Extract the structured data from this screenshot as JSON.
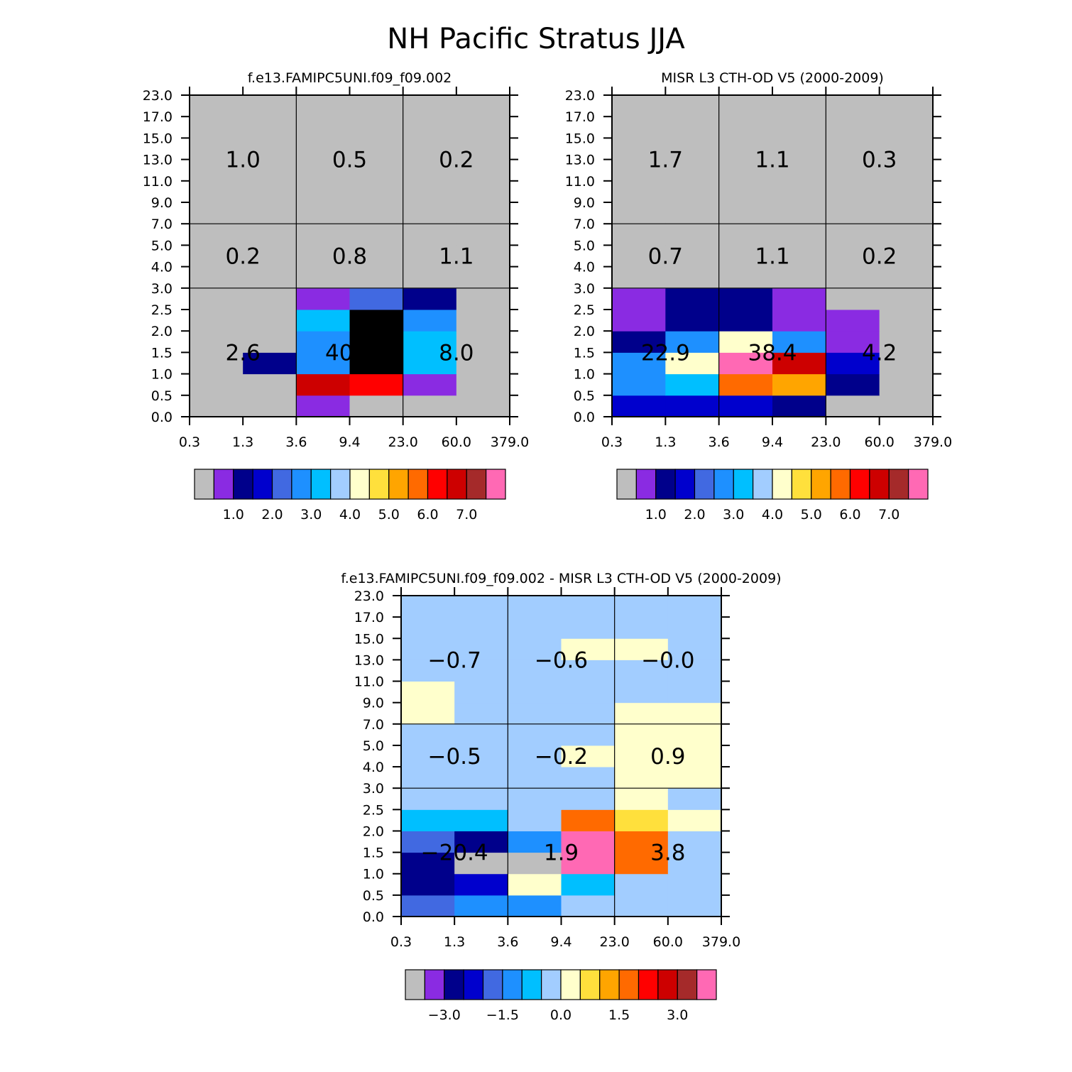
{
  "figure_title": "NH Pacific Stratus JJA",
  "chart_data": [
    {
      "type": "heatmap",
      "title": "f.e13.FAMIPC5UNI.f09_f09.002",
      "x_ticks": [
        "0.3",
        "1.3",
        "3.6",
        "9.4",
        "23.0",
        "60.0",
        "379.0"
      ],
      "y_ticks": [
        "0.0",
        "0.5",
        "1.0",
        "1.5",
        "2.0",
        "2.5",
        "3.0",
        "4.0",
        "5.0",
        "7.0",
        "9.0",
        "11.0",
        "13.0",
        "15.0",
        "17.0",
        "23.0"
      ],
      "cells": [
        [
          0,
          0,
          1,
          0,
          0,
          0
        ],
        [
          0,
          0,
          13,
          12,
          1,
          0
        ],
        [
          0,
          2,
          5,
          16,
          6,
          0
        ],
        [
          0,
          0,
          5,
          16,
          6,
          0
        ],
        [
          0,
          0,
          6,
          16,
          5,
          0
        ],
        [
          0,
          0,
          1,
          4,
          2,
          0
        ],
        [
          0,
          0,
          0,
          0,
          0,
          0
        ],
        [
          0,
          0,
          0,
          0,
          0,
          0
        ],
        [
          0,
          0,
          0,
          0,
          0,
          0
        ],
        [
          0,
          0,
          0,
          0,
          0,
          0
        ],
        [
          0,
          0,
          0,
          0,
          0,
          0
        ],
        [
          0,
          0,
          0,
          0,
          0,
          0
        ],
        [
          0,
          0,
          0,
          0,
          0,
          0
        ],
        [
          0,
          0,
          0,
          0,
          0,
          0
        ],
        [
          0,
          0,
          0,
          0,
          0,
          0
        ]
      ],
      "box_labels": [
        [
          "2.6",
          "40.3",
          "8.0"
        ],
        [
          "0.2",
          "0.8",
          "1.1"
        ],
        [
          "1.0",
          "0.5",
          "0.2"
        ]
      ],
      "colorbar": {
        "colors": [
          "#bebebe",
          "#8a2be2",
          "#00008b",
          "#0000cd",
          "#4169e1",
          "#1e90ff",
          "#00bfff",
          "#a2cdff",
          "#ffffcc",
          "#ffe03c",
          "#ffa500",
          "#ff6a00",
          "#ff0000",
          "#cd0000",
          "#a52a2a",
          "#ff69b4"
        ],
        "labels": [
          "1.0",
          "2.0",
          "3.0",
          "4.0",
          "5.0",
          "6.0",
          "7.0"
        ]
      }
    },
    {
      "type": "heatmap",
      "title": "MISR L3 CTH-OD V5 (2000-2009)",
      "x_ticks": [
        "0.3",
        "1.3",
        "3.6",
        "9.4",
        "23.0",
        "60.0",
        "379.0"
      ],
      "y_ticks": [
        "0.0",
        "0.5",
        "1.0",
        "1.5",
        "2.0",
        "2.5",
        "3.0",
        "4.0",
        "5.0",
        "7.0",
        "9.0",
        "11.0",
        "13.0",
        "15.0",
        "17.0",
        "23.0"
      ],
      "cells": [
        [
          3,
          3,
          3,
          2,
          0,
          0
        ],
        [
          5,
          6,
          11,
          10,
          2,
          0
        ],
        [
          5,
          8,
          15,
          13,
          3,
          0
        ],
        [
          2,
          5,
          8,
          5,
          1,
          0
        ],
        [
          1,
          2,
          2,
          1,
          1,
          0
        ],
        [
          1,
          2,
          2,
          1,
          0,
          0
        ],
        [
          0,
          0,
          0,
          0,
          0,
          0
        ],
        [
          0,
          0,
          0,
          0,
          0,
          0
        ],
        [
          0,
          0,
          0,
          0,
          0,
          0
        ],
        [
          0,
          0,
          0,
          0,
          0,
          0
        ],
        [
          0,
          0,
          0,
          0,
          0,
          0
        ],
        [
          0,
          0,
          0,
          0,
          0,
          0
        ],
        [
          0,
          0,
          0,
          0,
          0,
          0
        ],
        [
          0,
          0,
          0,
          0,
          0,
          0
        ],
        [
          0,
          0,
          0,
          0,
          0,
          0
        ]
      ],
      "box_labels": [
        [
          "22.9",
          "38.4",
          "4.2"
        ],
        [
          "0.7",
          "1.1",
          "0.2"
        ],
        [
          "1.7",
          "1.1",
          "0.3"
        ]
      ],
      "colorbar": {
        "colors": [
          "#bebebe",
          "#8a2be2",
          "#00008b",
          "#0000cd",
          "#4169e1",
          "#1e90ff",
          "#00bfff",
          "#a2cdff",
          "#ffffcc",
          "#ffe03c",
          "#ffa500",
          "#ff6a00",
          "#ff0000",
          "#cd0000",
          "#a52a2a",
          "#ff69b4"
        ],
        "labels": [
          "1.0",
          "2.0",
          "3.0",
          "4.0",
          "5.0",
          "6.0",
          "7.0"
        ]
      }
    },
    {
      "type": "heatmap",
      "title": "f.e13.FAMIPC5UNI.f09_f09.002 - MISR L3 CTH-OD V5 (2000-2009)",
      "x_ticks": [
        "0.3",
        "1.3",
        "3.6",
        "9.4",
        "23.0",
        "60.0",
        "379.0"
      ],
      "y_ticks": [
        "0.0",
        "0.5",
        "1.0",
        "1.5",
        "2.0",
        "2.5",
        "3.0",
        "4.0",
        "5.0",
        "7.0",
        "9.0",
        "11.0",
        "13.0",
        "15.0",
        "17.0",
        "23.0"
      ],
      "cells": [
        [
          4,
          5,
          5,
          7,
          7,
          7
        ],
        [
          2,
          3,
          8,
          6,
          7,
          7
        ],
        [
          2,
          0,
          0,
          15,
          11,
          7
        ],
        [
          4,
          2,
          5,
          15,
          11,
          7
        ],
        [
          6,
          6,
          7,
          11,
          9,
          8
        ],
        [
          7,
          7,
          7,
          7,
          8,
          7
        ],
        [
          7,
          7,
          7,
          7,
          8,
          8
        ],
        [
          7,
          7,
          7,
          8,
          8,
          8
        ],
        [
          7,
          7,
          7,
          7,
          8,
          8
        ],
        [
          8,
          7,
          7,
          7,
          8,
          8
        ],
        [
          8,
          7,
          7,
          7,
          7,
          7
        ],
        [
          7,
          7,
          7,
          7,
          7,
          7
        ],
        [
          7,
          7,
          7,
          8,
          8,
          7
        ],
        [
          7,
          7,
          7,
          7,
          7,
          7
        ],
        [
          7,
          7,
          7,
          7,
          7,
          7
        ]
      ],
      "box_labels": [
        [
          "−20.4",
          "1.9",
          "3.8"
        ],
        [
          "−0.5",
          "−0.2",
          "0.9"
        ],
        [
          "−0.7",
          "−0.6",
          "−0.0"
        ]
      ],
      "colorbar": {
        "colors": [
          "#bebebe",
          "#8a2be2",
          "#00008b",
          "#0000cd",
          "#4169e1",
          "#1e90ff",
          "#00bfff",
          "#a2cdff",
          "#ffffcc",
          "#ffe03c",
          "#ffa500",
          "#ff6a00",
          "#ff0000",
          "#cd0000",
          "#a52a2a",
          "#ff69b4"
        ],
        "labels": [
          "−3.0",
          "−1.5",
          "0.0",
          "1.5",
          "3.0"
        ]
      }
    }
  ]
}
